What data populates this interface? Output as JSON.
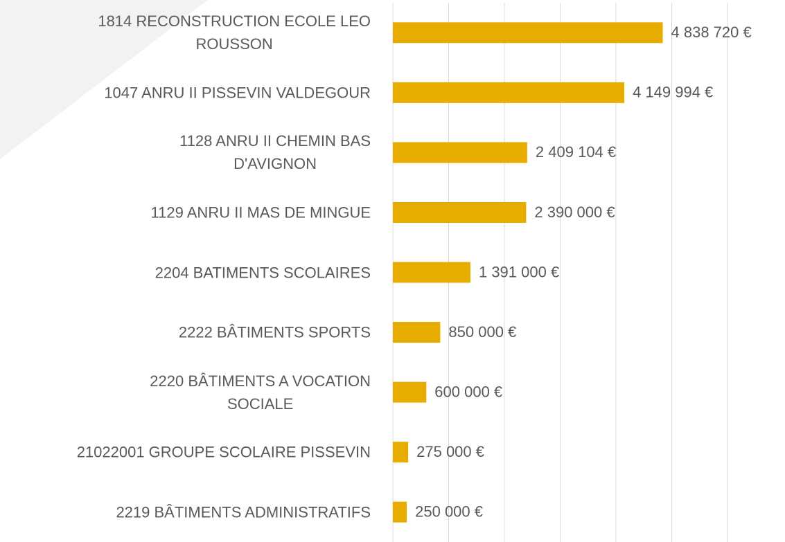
{
  "chart_data": {
    "type": "bar",
    "orientation": "horizontal",
    "categories": [
      "1814 RECONSTRUCTION ECOLE LEO\nROUSSON",
      "1047 ANRU II PISSEVIN VALDEGOUR",
      "1128 ANRU II CHEMIN BAS\nD'AVIGNON",
      "1129 ANRU II MAS DE MINGUE",
      "2204 BATIMENTS SCOLAIRES",
      "2222 BÂTIMENTS SPORTS",
      "2220 BÂTIMENTS A VOCATION\nSOCIALE",
      "21022001 GROUPE SCOLAIRE PISSEVIN",
      "2219 BÂTIMENTS ADMINISTRATIFS"
    ],
    "values": [
      4838720,
      4149994,
      2409104,
      2390000,
      1391000,
      850000,
      600000,
      275000,
      250000
    ],
    "value_labels": [
      "4 838 720 €",
      "4 149 994 €",
      "2 409 104 €",
      "2 390 000 €",
      "1 391 000 €",
      "850 000 €",
      "600 000 €",
      "275 000 €",
      "250 000 €"
    ],
    "color": "#e6ad00",
    "xlim": [
      0,
      6000000
    ],
    "xticks": [
      0,
      1000000,
      2000000,
      3000000,
      4000000,
      5000000,
      6000000
    ],
    "grid": true
  }
}
